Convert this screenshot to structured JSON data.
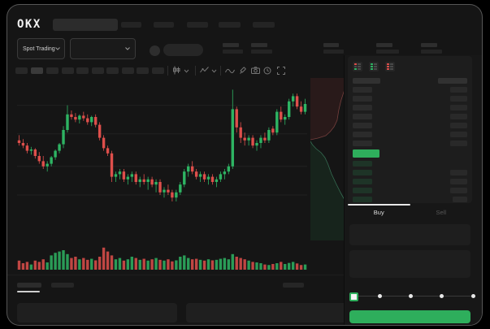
{
  "brand": {
    "logo_text": "OKX"
  },
  "trading": {
    "market_selector": "Spot Trading"
  },
  "side_panel": {
    "buy_label": "Buy",
    "sell_label": "Sell"
  },
  "colors": {
    "up": "#2eb463",
    "down": "#de4f4b",
    "buy_button": "#2eae5c",
    "price_bar": "#2eae5c",
    "window_bg": "#151515",
    "panel_bg": "#1d1d1d"
  },
  "icons": {
    "chevron-down": "v-chevron shape",
    "candle-style": "candlestick glyph",
    "indicator": "zigzag line",
    "wave": "sine wave",
    "draw": "pencil",
    "camera": "camera",
    "alerts": "clock circle",
    "fullscreen": "expand corners",
    "orderbook-all": "red+green book",
    "orderbook-bids": "green book",
    "orderbook-asks": "red book"
  },
  "orderbook": {
    "rows": [
      {
        "l": 34,
        "r": 36,
        "k": "header"
      },
      {
        "l": 24,
        "r": 21,
        "k": "ask"
      },
      {
        "l": 24,
        "r": 21,
        "k": "ask"
      },
      {
        "l": 24,
        "r": 21,
        "k": "ask"
      },
      {
        "l": 24,
        "r": 21,
        "k": "ask"
      },
      {
        "l": 24,
        "r": 21,
        "k": "ask"
      },
      {
        "l": 24,
        "r": 21,
        "k": "ask"
      },
      {
        "l": 24,
        "r": 21,
        "k": "ask"
      },
      {
        "l": 33,
        "r": 0,
        "k": "price"
      },
      {
        "l": 24,
        "r": 0,
        "k": "bid"
      },
      {
        "l": 24,
        "r": 21,
        "k": "bid"
      },
      {
        "l": 24,
        "r": 21,
        "k": "bid"
      },
      {
        "l": 24,
        "r": 21,
        "k": "bid"
      },
      {
        "l": 24,
        "r": 18,
        "k": "bid"
      }
    ]
  },
  "chart_data": {
    "type": "candlestick",
    "title": "",
    "xlabel": "",
    "ylabel": "",
    "axis_labels_visible": false,
    "price_scale_relative": [
      0,
      100
    ],
    "gridlines_price": [
      79,
      57,
      32,
      10
    ],
    "up_color": "#2eb463",
    "down_color": "#de4f4b",
    "candles_ohlc": [
      [
        52,
        56,
        48,
        50
      ],
      [
        50,
        53,
        46,
        48
      ],
      [
        48,
        50,
        42,
        44
      ],
      [
        44,
        47,
        41,
        45
      ],
      [
        45,
        46,
        38,
        40
      ],
      [
        40,
        43,
        34,
        36
      ],
      [
        36,
        40,
        30,
        32
      ],
      [
        32,
        36,
        28,
        34
      ],
      [
        34,
        40,
        32,
        39
      ],
      [
        39,
        45,
        37,
        44
      ],
      [
        44,
        50,
        42,
        49
      ],
      [
        49,
        63,
        46,
        60
      ],
      [
        60,
        79,
        58,
        72
      ],
      [
        72,
        75,
        68,
        70
      ],
      [
        70,
        73,
        66,
        68
      ],
      [
        68,
        72,
        65,
        71
      ],
      [
        71,
        74,
        67,
        69
      ],
      [
        69,
        72,
        64,
        66
      ],
      [
        66,
        71,
        63,
        70
      ],
      [
        70,
        72,
        62,
        64
      ],
      [
        64,
        66,
        52,
        54
      ],
      [
        54,
        56,
        44,
        46
      ],
      [
        46,
        48,
        40,
        42
      ],
      [
        42,
        44,
        20,
        24
      ],
      [
        24,
        28,
        20,
        26
      ],
      [
        26,
        30,
        22,
        28
      ],
      [
        28,
        30,
        20,
        22
      ],
      [
        22,
        26,
        18,
        24
      ],
      [
        24,
        28,
        20,
        26
      ],
      [
        26,
        28,
        18,
        20
      ],
      [
        20,
        24,
        16,
        22
      ],
      [
        22,
        26,
        18,
        20
      ],
      [
        20,
        24,
        14,
        22
      ],
      [
        22,
        24,
        16,
        18
      ],
      [
        18,
        22,
        12,
        20
      ],
      [
        20,
        22,
        10,
        12
      ],
      [
        12,
        16,
        8,
        14
      ],
      [
        14,
        18,
        10,
        12
      ],
      [
        12,
        14,
        5,
        8
      ],
      [
        8,
        14,
        5,
        12
      ],
      [
        12,
        20,
        10,
        18
      ],
      [
        18,
        30,
        16,
        28
      ],
      [
        28,
        34,
        24,
        32
      ],
      [
        32,
        36,
        26,
        28
      ],
      [
        28,
        30,
        22,
        24
      ],
      [
        24,
        28,
        20,
        26
      ],
      [
        26,
        28,
        20,
        22
      ],
      [
        22,
        26,
        18,
        24
      ],
      [
        24,
        26,
        18,
        20
      ],
      [
        20,
        24,
        16,
        22
      ],
      [
        22,
        28,
        20,
        26
      ],
      [
        26,
        30,
        22,
        28
      ],
      [
        28,
        34,
        26,
        32
      ],
      [
        32,
        91,
        30,
        76
      ],
      [
        76,
        78,
        58,
        62
      ],
      [
        62,
        66,
        50,
        54
      ],
      [
        54,
        58,
        48,
        52
      ],
      [
        52,
        56,
        48,
        54
      ],
      [
        54,
        56,
        46,
        48
      ],
      [
        48,
        52,
        44,
        50
      ],
      [
        50,
        56,
        46,
        54
      ],
      [
        54,
        58,
        50,
        52
      ],
      [
        52,
        62,
        50,
        60
      ],
      [
        61,
        63,
        56,
        58
      ],
      [
        58,
        76,
        56,
        74
      ],
      [
        74,
        78,
        66,
        68
      ],
      [
        68,
        72,
        64,
        70
      ],
      [
        70,
        84,
        68,
        82
      ],
      [
        82,
        88,
        78,
        86
      ],
      [
        86,
        88,
        76,
        78
      ],
      [
        78,
        82,
        72,
        74
      ],
      [
        74,
        84,
        72,
        80
      ]
    ],
    "volumes": [
      35,
      25,
      30,
      20,
      35,
      30,
      40,
      28,
      55,
      65,
      70,
      75,
      60,
      45,
      50,
      40,
      45,
      38,
      42,
      36,
      50,
      85,
      70,
      55,
      40,
      45,
      35,
      40,
      50,
      45,
      38,
      42,
      35,
      40,
      45,
      38,
      35,
      40,
      32,
      36,
      50,
      55,
      45,
      40,
      42,
      38,
      35,
      40,
      36,
      38,
      42,
      45,
      40,
      60,
      50,
      45,
      40,
      35,
      30,
      28,
      25,
      20,
      18,
      22,
      25,
      30,
      22,
      26,
      30,
      24,
      18,
      20
    ],
    "depth": {
      "ask_curve": [
        [
          1,
          0.025
        ],
        [
          0.88,
          0.08
        ],
        [
          0.8,
          0.14
        ],
        [
          0.74,
          0.2
        ],
        [
          0.7,
          0.26
        ],
        [
          0.62,
          0.3
        ],
        [
          0.52,
          0.33
        ],
        [
          0.4,
          0.355
        ],
        [
          0.2,
          0.37
        ],
        [
          0,
          0.38
        ]
      ],
      "bid_curve": [
        [
          0,
          0.39
        ],
        [
          0.05,
          0.41
        ],
        [
          0.15,
          0.435
        ],
        [
          0.28,
          0.46
        ],
        [
          0.38,
          0.49
        ],
        [
          0.46,
          0.53
        ],
        [
          0.55,
          0.59
        ],
        [
          0.67,
          0.65
        ],
        [
          0.8,
          0.71
        ],
        [
          0.93,
          0.765
        ],
        [
          1,
          0.79
        ]
      ],
      "ask_fill": "rgba(222,79,75,0.10)",
      "ask_stroke": "rgba(222,110,106,0.45)",
      "bid_fill": "rgba(46,180,99,0.10)",
      "bid_stroke": "rgba(90,205,150,0.45)"
    }
  }
}
